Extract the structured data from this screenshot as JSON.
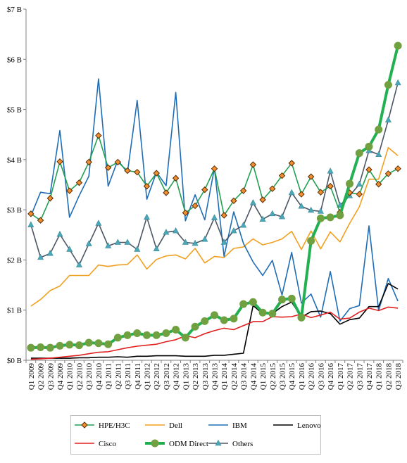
{
  "chart_data": {
    "type": "line",
    "title": "",
    "xlabel": "",
    "ylabel": "",
    "ylim": [
      0,
      7
    ],
    "y_tick_labels": [
      "$0 B",
      "$1 B",
      "$2 B",
      "$3 B",
      "$4 B",
      "$5 B",
      "$6 B",
      "$7 B"
    ],
    "grid": false,
    "legend_position": "bottom",
    "categories": [
      "Q1 2009",
      "Q2 2009",
      "Q3 2009",
      "Q4 2009",
      "Q1 2010",
      "Q2 2010",
      "Q3 2010",
      "Q4 2010",
      "Q1 2011",
      "Q2 2011",
      "Q3 2011",
      "Q4 2011",
      "Q1 2012",
      "Q2 2012",
      "Q3 2012",
      "Q4 2012",
      "Q1 2013",
      "Q2 2013",
      "Q3 2013",
      "Q4 2013",
      "Q1 2014",
      "Q2 2014",
      "Q3 2014",
      "Q4 2014",
      "Q1 2015",
      "Q2 2015",
      "Q3 2015",
      "Q4 2015",
      "Q1 2016",
      "Q2 2016",
      "Q3 2016",
      "Q4 2016",
      "Q1 2017",
      "Q2 2017",
      "Q3 2017",
      "Q4 2017",
      "Q1 2018",
      "Q2 2018",
      "Q3 2018"
    ],
    "series": [
      {
        "name": "HPE/H3C",
        "color": "#22a050",
        "marker": "diamond-orange",
        "values": [
          2.92,
          2.79,
          3.23,
          3.96,
          3.38,
          3.54,
          3.95,
          4.48,
          3.84,
          3.95,
          3.78,
          3.75,
          3.47,
          3.73,
          3.34,
          3.63,
          2.94,
          3.08,
          3.4,
          3.82,
          2.89,
          3.18,
          3.38,
          3.9,
          3.2,
          3.42,
          3.68,
          3.93,
          3.31,
          3.66,
          3.35,
          3.47,
          2.95,
          3.34,
          3.31,
          3.8,
          3.51,
          3.72,
          3.82
        ]
      },
      {
        "name": "Dell",
        "color": "#f0a020",
        "marker": "none",
        "values": [
          1.08,
          1.21,
          1.39,
          1.48,
          1.69,
          1.69,
          1.69,
          1.9,
          1.87,
          1.9,
          1.91,
          2.1,
          1.82,
          2.01,
          2.08,
          2.1,
          2.02,
          2.23,
          1.94,
          2.07,
          2.05,
          2.23,
          2.26,
          2.42,
          2.3,
          2.35,
          2.42,
          2.57,
          2.21,
          2.58,
          2.22,
          2.56,
          2.36,
          2.73,
          3.06,
          3.61,
          3.61,
          4.24,
          4.08
        ]
      },
      {
        "name": "IBM",
        "color": "#1f6db5",
        "marker": "none",
        "values": [
          2.88,
          3.35,
          3.32,
          4.58,
          2.85,
          3.28,
          3.67,
          5.61,
          3.47,
          3.99,
          3.74,
          5.18,
          3.21,
          3.75,
          3.48,
          5.34,
          2.78,
          3.3,
          2.8,
          3.83,
          2.07,
          2.96,
          2.33,
          1.96,
          1.69,
          1.99,
          1.3,
          2.15,
          1.14,
          1.32,
          0.86,
          1.77,
          0.78,
          1.03,
          1.09,
          2.68,
          0.99,
          1.63,
          1.18
        ]
      },
      {
        "name": "Lenovo",
        "color": "#000000",
        "marker": "none",
        "values": [
          0.04,
          0.04,
          0.04,
          0.04,
          0.04,
          0.05,
          0.05,
          0.06,
          0.06,
          0.07,
          0.06,
          0.08,
          0.08,
          0.09,
          0.09,
          0.09,
          0.08,
          0.08,
          0.08,
          0.1,
          0.1,
          0.12,
          0.14,
          1.09,
          0.93,
          0.93,
          1.07,
          1.16,
          0.86,
          0.97,
          0.98,
          0.93,
          0.72,
          0.81,
          0.84,
          1.07,
          1.07,
          1.53,
          1.42
        ]
      },
      {
        "name": "Cisco",
        "color": "#e02020",
        "marker": "none",
        "values": [
          0.02,
          0.03,
          0.04,
          0.06,
          0.08,
          0.1,
          0.13,
          0.16,
          0.17,
          0.21,
          0.25,
          0.28,
          0.3,
          0.32,
          0.37,
          0.41,
          0.49,
          0.45,
          0.53,
          0.59,
          0.64,
          0.61,
          0.69,
          0.77,
          0.77,
          0.87,
          0.86,
          0.87,
          0.92,
          0.85,
          0.9,
          0.96,
          0.82,
          0.84,
          0.96,
          1.04,
          0.99,
          1.06,
          1.04
        ]
      },
      {
        "name": "ODM Direct",
        "color": "#22b050",
        "marker": "circle-olive",
        "values": [
          0.25,
          0.26,
          0.25,
          0.29,
          0.31,
          0.3,
          0.35,
          0.34,
          0.32,
          0.45,
          0.5,
          0.54,
          0.5,
          0.5,
          0.54,
          0.61,
          0.45,
          0.67,
          0.78,
          0.9,
          0.8,
          0.83,
          1.12,
          1.16,
          0.95,
          0.93,
          1.21,
          1.23,
          0.85,
          2.38,
          2.83,
          2.85,
          2.89,
          3.52,
          4.13,
          4.26,
          4.6,
          5.49,
          6.27
        ]
      },
      {
        "name": "Others",
        "color": "#4c5666",
        "marker": "triangle-teal",
        "values": [
          2.7,
          2.05,
          2.13,
          2.51,
          2.21,
          1.9,
          2.32,
          2.73,
          2.28,
          2.35,
          2.35,
          2.21,
          2.85,
          2.22,
          2.55,
          2.58,
          2.35,
          2.33,
          2.41,
          2.84,
          2.35,
          2.58,
          2.69,
          3.14,
          2.81,
          2.92,
          2.86,
          3.34,
          3.07,
          2.99,
          2.97,
          3.77,
          3.09,
          3.28,
          3.51,
          4.18,
          4.1,
          4.79,
          5.53
        ]
      }
    ]
  }
}
